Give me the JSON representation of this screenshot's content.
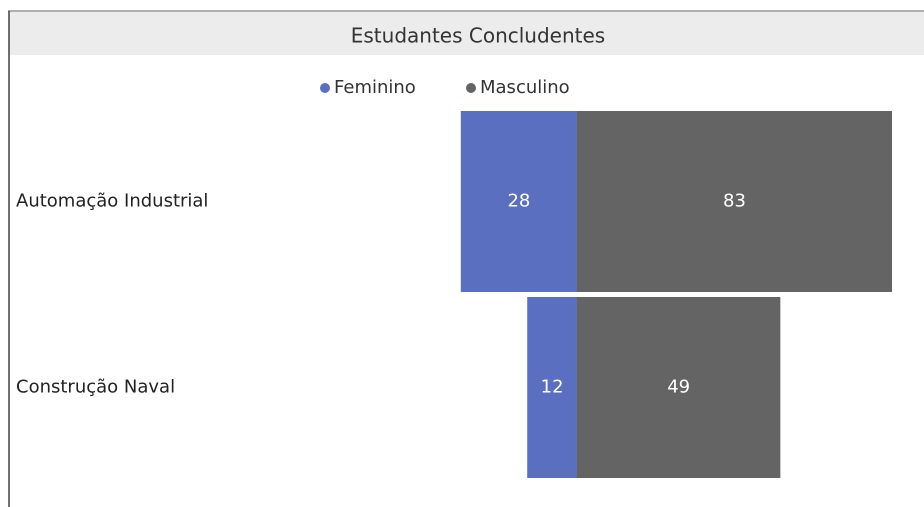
{
  "chart_data": {
    "type": "bar",
    "title": "Estudantes Concludentes",
    "categories": [
      "Automação Industrial",
      "Construção Naval"
    ],
    "series": [
      {
        "name": "Feminino",
        "color": "#5b6fc0",
        "values": [
          28,
          12
        ]
      },
      {
        "name": "Masculino",
        "color": "#646464",
        "values": [
          83,
          49
        ]
      }
    ]
  }
}
